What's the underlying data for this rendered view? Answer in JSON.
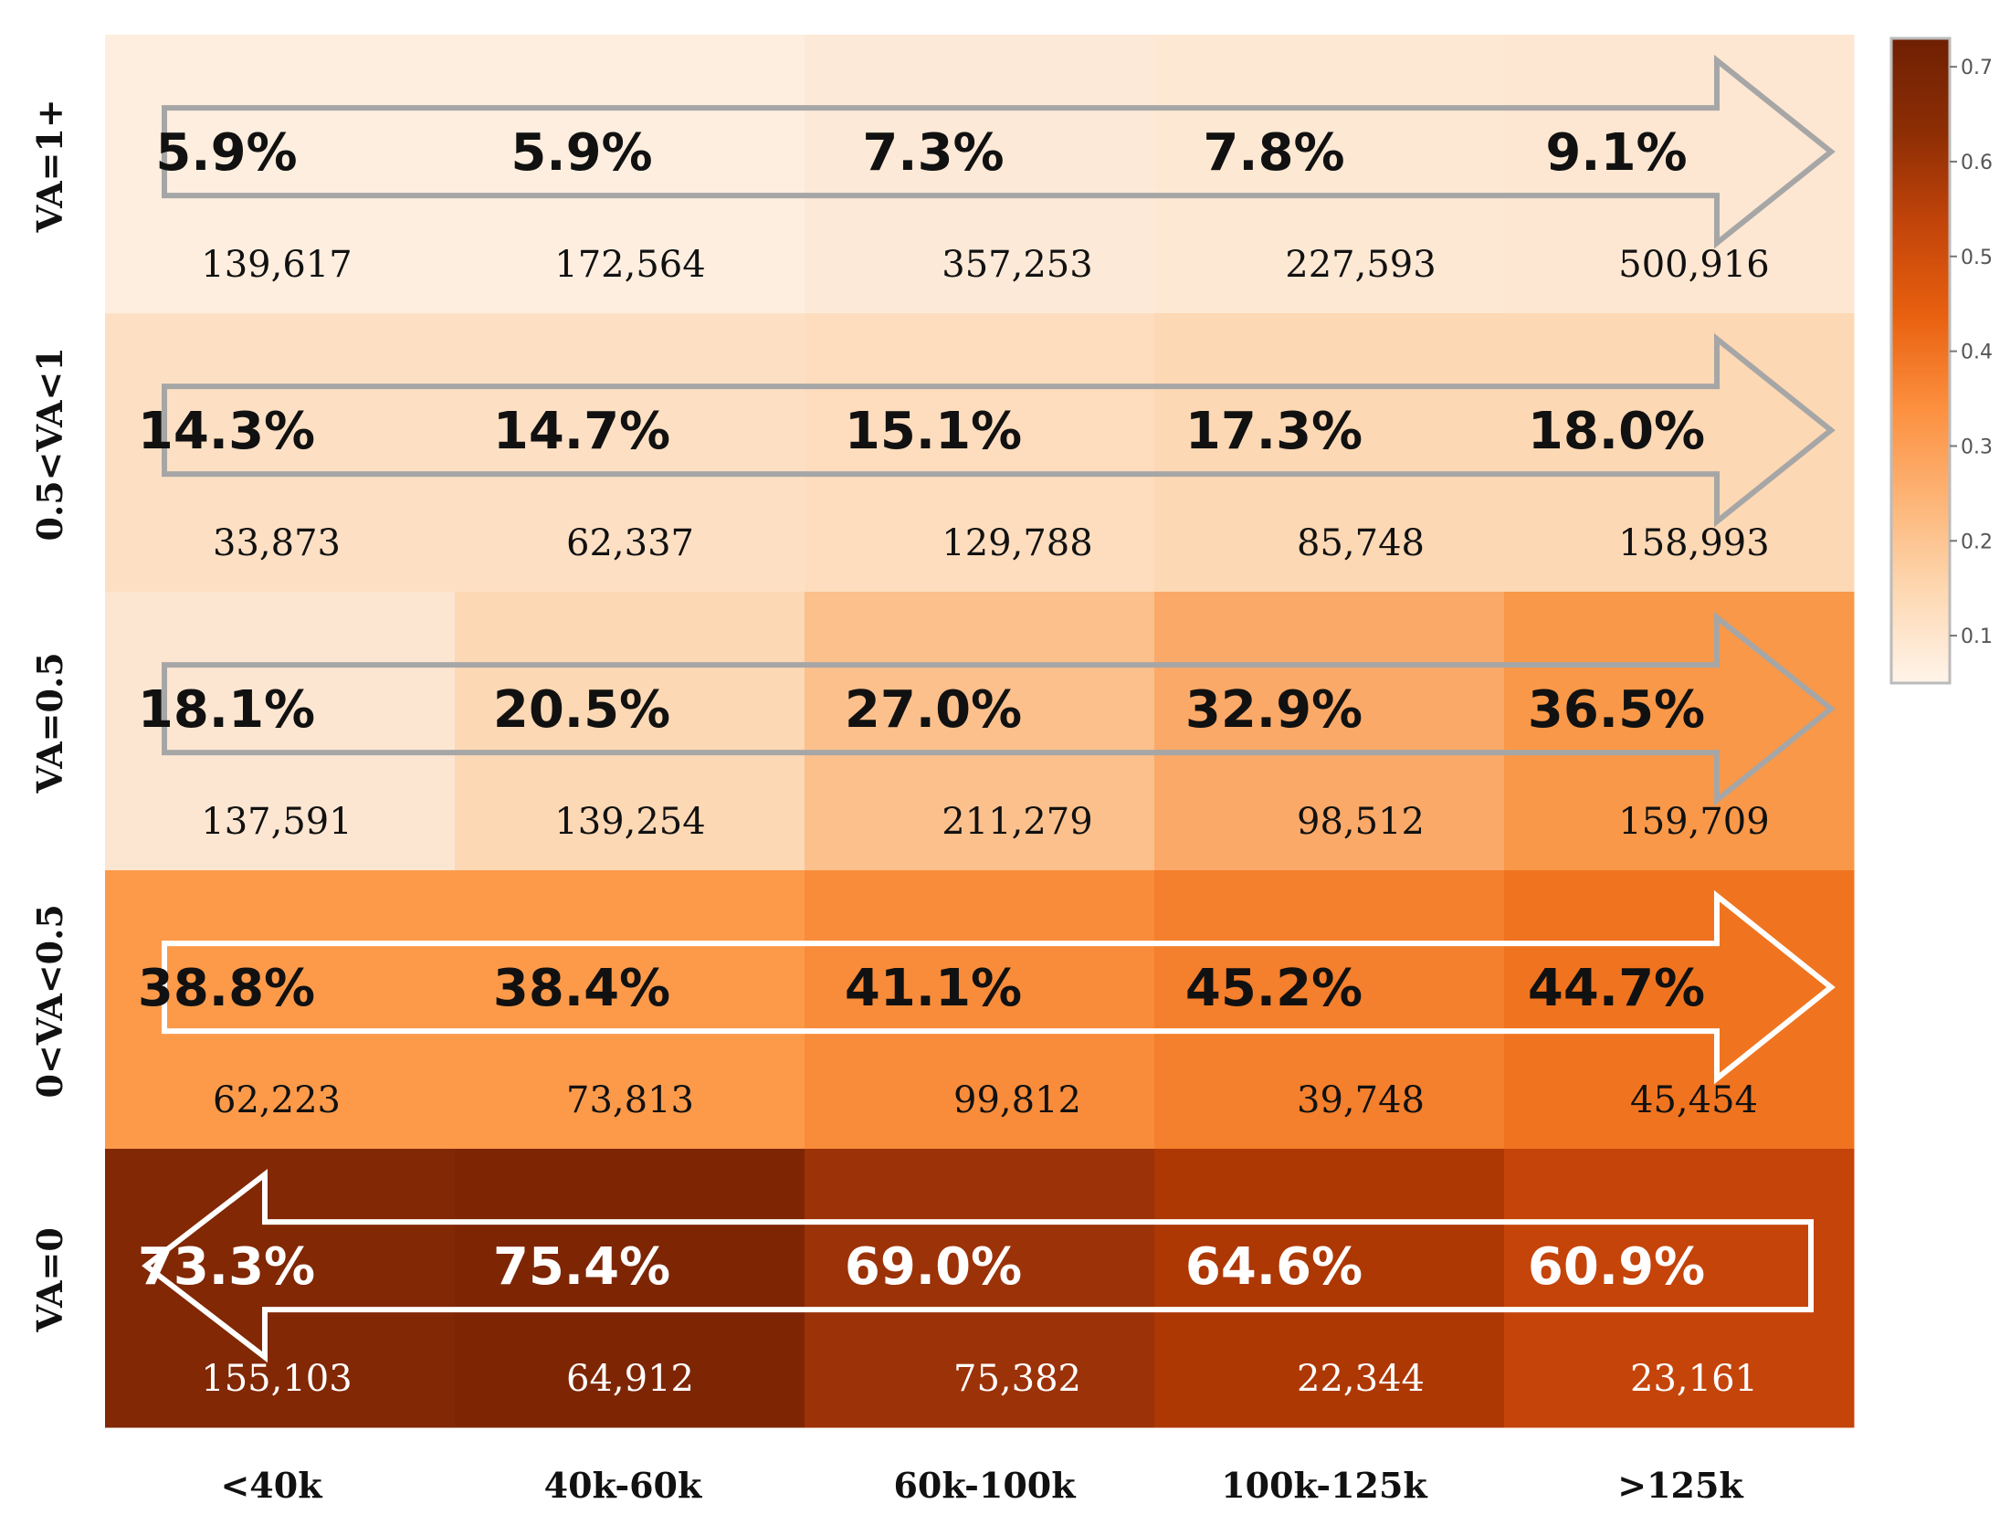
{
  "chart_data": {
    "type": "heatmap",
    "title": "",
    "xlabel": "",
    "ylabel": "",
    "x_categories": [
      "<40k",
      "40k-60k",
      "60k-100k",
      "100k-125k",
      ">125k"
    ],
    "y_categories": [
      "VA=1+",
      "0.5<VA<1",
      "VA=0.5",
      "0<VA<0.5",
      "VA=0"
    ],
    "cells": [
      [
        {
          "value": 0.059,
          "label": "5.9%",
          "count": "139,617"
        },
        {
          "value": 0.059,
          "label": "5.9%",
          "count": "172,564"
        },
        {
          "value": 0.073,
          "label": "7.3%",
          "count": "357,253"
        },
        {
          "value": 0.078,
          "label": "7.8%",
          "count": "227,593"
        },
        {
          "value": 0.091,
          "label": "9.1%",
          "count": "500,916"
        }
      ],
      [
        {
          "value": 0.143,
          "label": "14.3%",
          "count": "33,873"
        },
        {
          "value": 0.147,
          "label": "14.7%",
          "count": "62,337"
        },
        {
          "value": 0.151,
          "label": "15.1%",
          "count": "129,788"
        },
        {
          "value": 0.173,
          "label": "17.3%",
          "count": "85,748"
        },
        {
          "value": 0.18,
          "label": "18.0%",
          "count": "158,993"
        }
      ],
      [
        {
          "value": 0.181,
          "label": "18.1%",
          "count": "137,591"
        },
        {
          "value": 0.205,
          "label": "20.5%",
          "count": "139,254"
        },
        {
          "value": 0.27,
          "label": "27.0%",
          "count": "211,279"
        },
        {
          "value": 0.329,
          "label": "32.9%",
          "count": "98,512"
        },
        {
          "value": 0.365,
          "label": "36.5%",
          "count": "159,709"
        }
      ],
      [
        {
          "value": 0.388,
          "label": "38.8%",
          "count": "62,223"
        },
        {
          "value": 0.384,
          "label": "38.4%",
          "count": "73,813"
        },
        {
          "value": 0.411,
          "label": "41.1%",
          "count": "99,812"
        },
        {
          "value": 0.452,
          "label": "45.2%",
          "count": "39,748"
        },
        {
          "value": 0.447,
          "label": "44.7%",
          "count": "45,454"
        }
      ],
      [
        {
          "value": 0.733,
          "label": "73.3%",
          "count": "155,103"
        },
        {
          "value": 0.754,
          "label": "75.4%",
          "count": "64,912"
        },
        {
          "value": 0.69,
          "label": "69.0%",
          "count": "75,382"
        },
        {
          "value": 0.646,
          "label": "64.6%",
          "count": "22,344"
        },
        {
          "value": 0.609,
          "label": "60.9%",
          "count": "23,161"
        }
      ]
    ],
    "row_cell_colors": [
      [
        "#fdeedf",
        "#fdeedf",
        "#fde9d7",
        "#fde8d4",
        "#fde7d2"
      ],
      [
        "#fde0c4",
        "#fde0c4",
        "#fdddbe",
        "#fdd8b4",
        "#fdd8b4"
      ],
      [
        "#fde6d1",
        "#fcd8b4",
        "#fbc08c",
        "#fba968",
        "#f99848"
      ],
      [
        "#fc9a4a",
        "#fc9a4a",
        "#f88c3a",
        "#f47f2c",
        "#f0741f"
      ],
      [
        "#822804",
        "#7e2604",
        "#9c3208",
        "#ad3804",
        "#c5440a"
      ]
    ],
    "trend_arrows": [
      {
        "row": "VA=1+",
        "direction": "right",
        "color": "#a6a6a6"
      },
      {
        "row": "0.5<VA<1",
        "direction": "right",
        "color": "#a6a6a6"
      },
      {
        "row": "VA=0.5",
        "direction": "right",
        "color": "#a6a6a6"
      },
      {
        "row": "0<VA<0.5",
        "direction": "right",
        "color": "#ffffff"
      },
      {
        "row": "VA=0",
        "direction": "left",
        "color": "#ffffff"
      }
    ],
    "colorbar": {
      "ticks": [
        "0.1",
        "0.2",
        "0.3",
        "0.4",
        "0.5",
        "0.6",
        "0.7"
      ],
      "tick_values": [
        0.1,
        0.2,
        0.3,
        0.4,
        0.5,
        0.6,
        0.7
      ],
      "range": [
        0.05,
        0.73
      ],
      "colors": [
        "#fff4ea",
        "#fdd8b2",
        "#fdb476",
        "#fc8f3e",
        "#e8600f",
        "#c2440a",
        "#8c2d04",
        "#6f2003"
      ]
    },
    "text_color_dark": "#111111",
    "text_color_light": "#ffffff"
  }
}
